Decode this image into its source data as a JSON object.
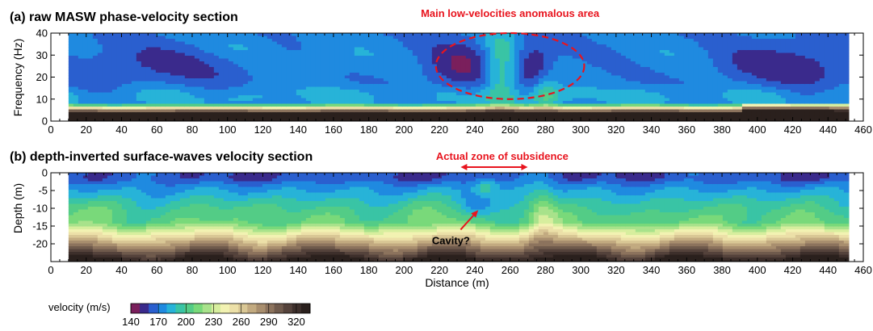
{
  "chart_data": [
    {
      "type": "heatmap",
      "title": "(a) raw MASW phase-velocity section",
      "xlabel": "",
      "ylabel": "Frequency (Hz)",
      "xlim": [
        0,
        460
      ],
      "ylim": [
        0,
        40
      ],
      "x_ticks": [
        0,
        20,
        40,
        60,
        80,
        100,
        120,
        140,
        160,
        180,
        200,
        220,
        240,
        260,
        280,
        300,
        320,
        340,
        360,
        380,
        400,
        420,
        440,
        460
      ],
      "y_ticks": [
        0,
        10,
        20,
        30,
        40
      ],
      "data_extent_x": [
        10,
        450
      ],
      "annotations": [
        {
          "text": "Main low-velocities anomalous area",
          "shape": "dashed-ellipse",
          "center_x": 260,
          "center_y": 25,
          "radius_x": 42,
          "radius_y": 15
        }
      ]
    },
    {
      "type": "heatmap",
      "title": "(b) depth-inverted surface-waves velocity section",
      "xlabel": "Distance (m)",
      "ylabel": "Depth (m)",
      "xlim": [
        0,
        460
      ],
      "ylim": [
        -25,
        0
      ],
      "x_ticks": [
        0,
        20,
        40,
        60,
        80,
        100,
        120,
        140,
        160,
        180,
        200,
        220,
        240,
        260,
        280,
        300,
        320,
        340,
        360,
        380,
        400,
        420,
        440,
        460
      ],
      "y_ticks": [
        0,
        -5,
        -10,
        -15,
        -20
      ],
      "data_extent_x": [
        10,
        450
      ],
      "annotations": [
        {
          "text": "Actual zone of subsidence",
          "shape": "double-arrow",
          "x_start": 232,
          "x_end": 270,
          "y": 1.3
        },
        {
          "text": "Cavity?",
          "shape": "arrow",
          "from_x": 232,
          "from_y": -16,
          "to_x": 242,
          "to_y": -10.5
        }
      ]
    }
  ],
  "colorbar": {
    "label": "velocity (m/s)",
    "min": 140,
    "max": 335,
    "step": 10,
    "tick_labels": [
      "140",
      "170",
      "200",
      "230",
      "260",
      "290",
      "320"
    ],
    "tick_values": [
      140,
      170,
      200,
      230,
      260,
      290,
      320
    ],
    "colors": [
      "#7a1f5c",
      "#3a2a8c",
      "#2a5fcf",
      "#1f8ae0",
      "#27b3d8",
      "#39c4a5",
      "#53cc86",
      "#79d97a",
      "#a8e28b",
      "#d7ee9e",
      "#f2f2b2",
      "#ece0a8",
      "#d9c795",
      "#c2aa80",
      "#a88e6e",
      "#8c735d",
      "#6f5a4c",
      "#54423b",
      "#3d2f2b",
      "#2a201d"
    ]
  }
}
